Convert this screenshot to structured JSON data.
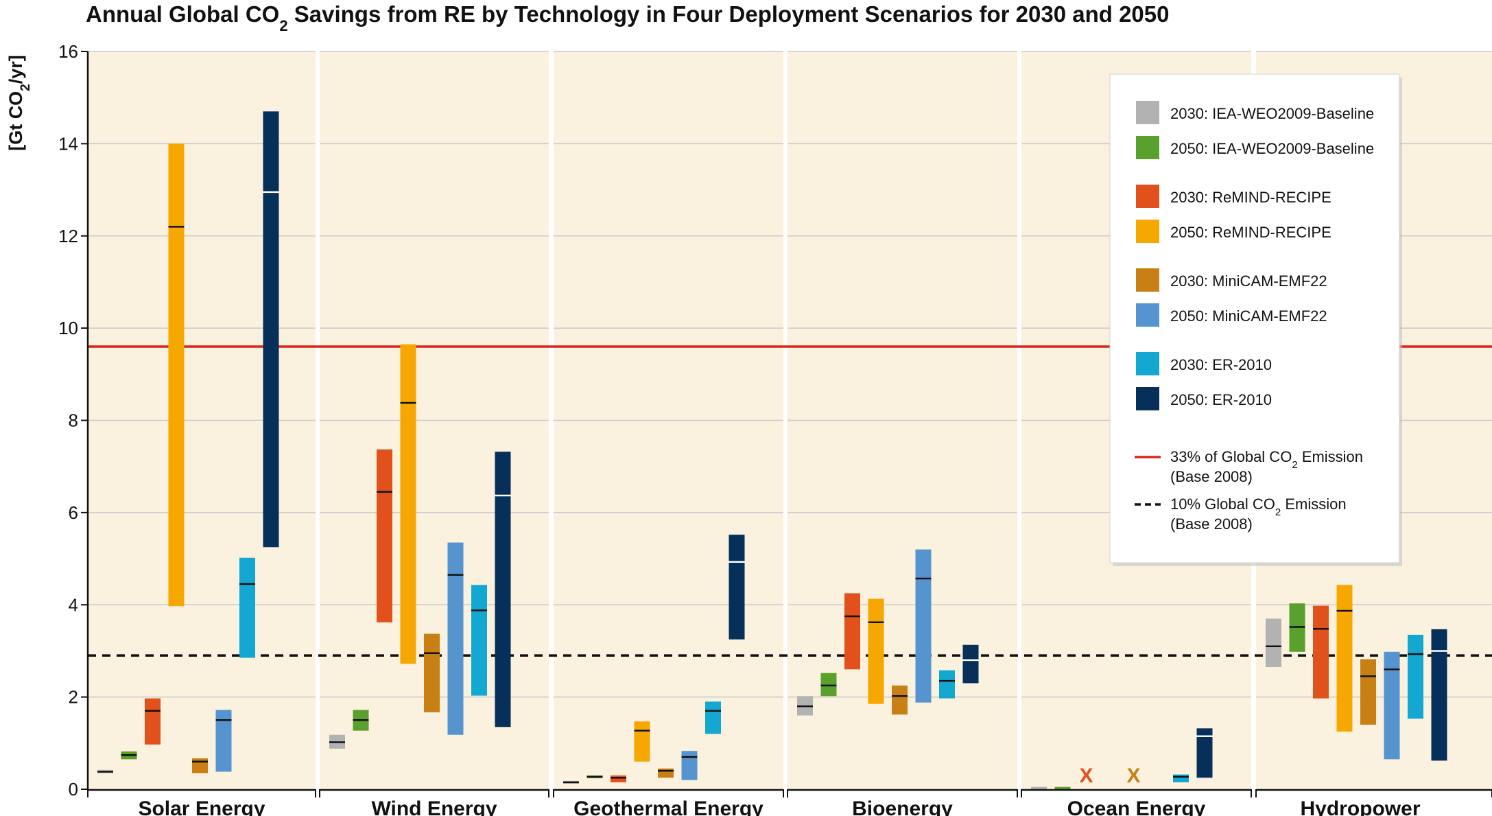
{
  "chart_data": {
    "type": "bar",
    "subtype": "floating-range-bar-with-median",
    "title": "Annual Global CO2 Savings from RE by Technology in Four Deployment Scenarios for 2030 and 2050",
    "title_parts": {
      "pre": "Annual Global CO",
      "sub": "2",
      "post": " Savings from RE by Technology in Four Deployment Scenarios for 2030 and 2050"
    },
    "ylabel": "[Gt CO2/yr]",
    "ylabel_parts": {
      "pre": "[Gt CO",
      "sub": "2",
      "post": "/yr]"
    },
    "ylim": [
      0,
      16
    ],
    "yticks": [
      "0",
      "2",
      "4",
      "6",
      "8",
      "10",
      "12",
      "14",
      "16"
    ],
    "grid": true,
    "legend_position": "top-right",
    "reference_lines": [
      {
        "name": "33% of Global CO2 Emission (Base 2008)",
        "value": 9.6,
        "color": "#d7261e",
        "style": "solid"
      },
      {
        "name": "10% Global CO2 Emission (Base 2008)",
        "value": 2.9,
        "color": "#111111",
        "style": "dashed"
      }
    ],
    "series": [
      {
        "name": "2030: IEA-WEO2009-Baseline",
        "color": "#b2b2b2",
        "median_color": "#111111"
      },
      {
        "name": "2050: IEA-WEO2009-Baseline",
        "color": "#5aa02c",
        "median_color": "#111111"
      },
      {
        "name": "2030: ReMIND-RECIPE",
        "color": "#e2501c",
        "median_color": "#111111"
      },
      {
        "name": "2050: ReMIND-RECIPE",
        "color": "#f7a800",
        "median_color": "#111111"
      },
      {
        "name": "2030: MiniCAM-EMF22",
        "color": "#c87f14",
        "median_color": "#111111"
      },
      {
        "name": "2050: MiniCAM-EMF22",
        "color": "#5594cf",
        "median_color": "#111111"
      },
      {
        "name": "2030: ER-2010",
        "color": "#12a8d2",
        "median_color": "#111111"
      },
      {
        "name": "2050: ER-2010",
        "color": "#062f5a",
        "median_color": "#ffffff"
      }
    ],
    "categories": [
      "Solar Energy",
      "Wind Energy",
      "Geothermal Energy",
      "Bioenergy",
      "Ocean Energy",
      "Hydropower"
    ],
    "values": [
      [
        {
          "min": 0.35,
          "max": 0.42,
          "median": 0.38
        },
        {
          "min": 0.65,
          "max": 0.82,
          "median": 0.74
        },
        {
          "min": 0.97,
          "max": 1.97,
          "median": 1.7
        },
        {
          "min": 3.97,
          "max": 14.0,
          "median": 12.2
        },
        {
          "min": 0.35,
          "max": 0.67,
          "median": 0.6
        },
        {
          "min": 0.38,
          "max": 1.72,
          "median": 1.5
        },
        {
          "min": 2.85,
          "max": 5.02,
          "median": 4.45
        },
        {
          "min": 5.25,
          "max": 14.7,
          "median": 12.95
        }
      ],
      [
        {
          "min": 0.88,
          "max": 1.18,
          "median": 1.02
        },
        {
          "min": 1.27,
          "max": 1.72,
          "median": 1.5
        },
        {
          "min": 3.62,
          "max": 7.37,
          "median": 6.45
        },
        {
          "min": 2.72,
          "max": 9.65,
          "median": 8.38
        },
        {
          "min": 1.67,
          "max": 3.37,
          "median": 2.95
        },
        {
          "min": 1.18,
          "max": 5.35,
          "median": 4.65
        },
        {
          "min": 2.03,
          "max": 4.43,
          "median": 3.88
        },
        {
          "min": 1.35,
          "max": 7.32,
          "median": 6.37
        }
      ],
      [
        {
          "min": 0.12,
          "max": 0.18,
          "median": 0.15
        },
        {
          "min": 0.24,
          "max": 0.3,
          "median": 0.27
        },
        {
          "min": 0.15,
          "max": 0.3,
          "median": 0.25
        },
        {
          "min": 0.6,
          "max": 1.47,
          "median": 1.27
        },
        {
          "min": 0.25,
          "max": 0.45,
          "median": 0.4
        },
        {
          "min": 0.2,
          "max": 0.83,
          "median": 0.7
        },
        {
          "min": 1.2,
          "max": 1.9,
          "median": 1.7
        },
        {
          "min": 3.25,
          "max": 5.52,
          "median": 4.93
        }
      ],
      [
        {
          "min": 1.6,
          "max": 2.02,
          "median": 1.8
        },
        {
          "min": 2.02,
          "max": 2.52,
          "median": 2.25
        },
        {
          "min": 2.6,
          "max": 4.25,
          "median": 3.75
        },
        {
          "min": 1.85,
          "max": 4.13,
          "median": 3.62
        },
        {
          "min": 1.62,
          "max": 2.25,
          "median": 2.02
        },
        {
          "min": 1.88,
          "max": 5.2,
          "median": 4.57
        },
        {
          "min": 1.97,
          "max": 2.58,
          "median": 2.35
        },
        {
          "min": 2.3,
          "max": 3.13,
          "median": 2.8
        }
      ],
      [
        {
          "min": 0.0,
          "max": 0.05,
          "median": null
        },
        {
          "min": 0.0,
          "max": 0.05,
          "median": null
        },
        {
          "missing": true
        },
        null,
        {
          "missing": true
        },
        null,
        {
          "min": 0.15,
          "max": 0.32,
          "median": 0.27
        },
        {
          "min": 0.25,
          "max": 1.32,
          "median": 1.15
        }
      ],
      [
        {
          "min": 2.65,
          "max": 3.7,
          "median": 3.1
        },
        {
          "min": 2.98,
          "max": 4.03,
          "median": 3.52
        },
        {
          "min": 1.97,
          "max": 3.98,
          "median": 3.48
        },
        {
          "min": 1.25,
          "max": 4.43,
          "median": 3.87
        },
        {
          "min": 1.4,
          "max": 2.82,
          "median": 2.45
        },
        {
          "min": 0.65,
          "max": 2.98,
          "median": 2.6
        },
        {
          "min": 1.53,
          "max": 3.35,
          "median": 2.93
        },
        {
          "min": 0.62,
          "max": 3.47,
          "median": 3.0
        }
      ]
    ],
    "missing_marker": "X",
    "legend": {
      "groups": [
        [
          0,
          1
        ],
        [
          2,
          3
        ],
        [
          4,
          5
        ],
        [
          6,
          7
        ]
      ],
      "line_entries": [
        {
          "pre": "33% of Global CO",
          "sub": "2",
          "post": " Emission",
          "line2": "(Base 2008)"
        },
        {
          "pre": "10% Global CO",
          "sub": "2",
          "post": " Emission",
          "line2": "(Base 2008)"
        }
      ]
    },
    "colors": {
      "panel_background": "#fbf1df",
      "gridline": "#c9c9c9",
      "axis": "#111111"
    }
  }
}
